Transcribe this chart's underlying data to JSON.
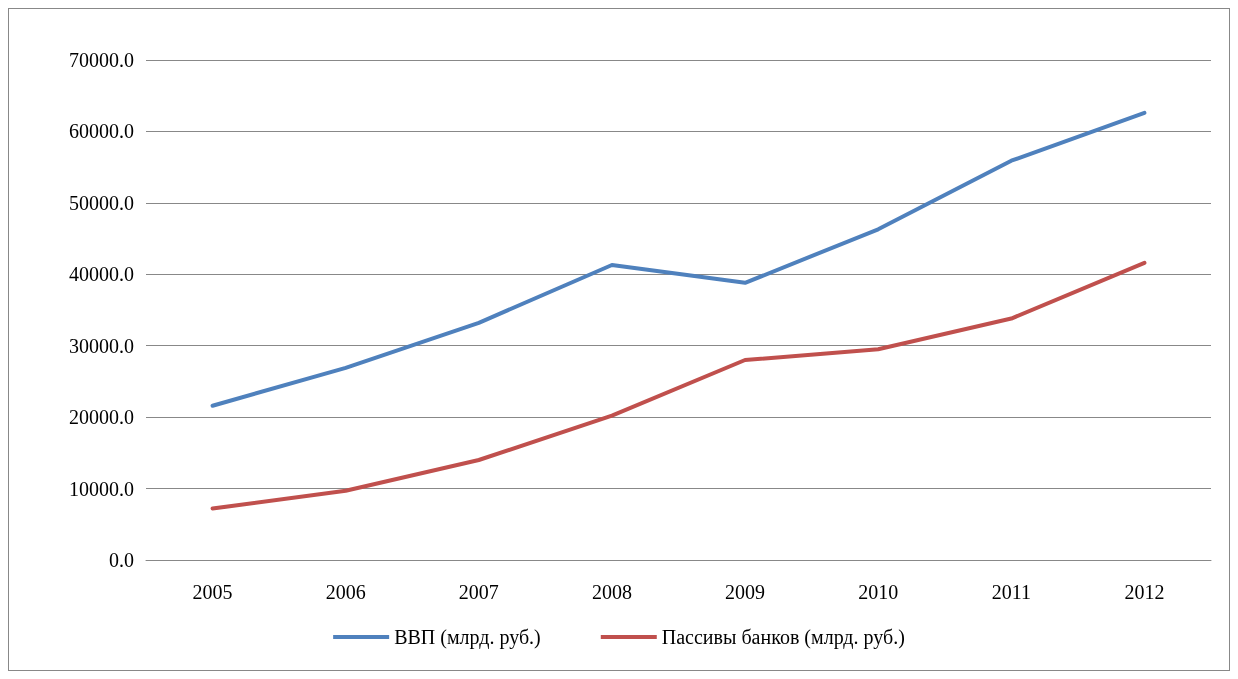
{
  "chart_data": {
    "type": "line",
    "categories": [
      "2005",
      "2006",
      "2007",
      "2008",
      "2009",
      "2010",
      "2011",
      "2012"
    ],
    "series": [
      {
        "name": "ВВП (млрд. руб.)",
        "color": "#4f81bd",
        "values": [
          21600,
          26900,
          33200,
          41300,
          38800,
          46300,
          55900,
          62600
        ]
      },
      {
        "name": "Пассивы банков (млрд. руб.)",
        "color": "#c0504d",
        "values": [
          7200,
          9700,
          14000,
          20200,
          28000,
          29500,
          33800,
          41600
        ]
      }
    ],
    "ylim": [
      0,
      70000
    ],
    "yticks": [
      {
        "value": 0,
        "label": "0.0"
      },
      {
        "value": 10000,
        "label": "10000.0"
      },
      {
        "value": 20000,
        "label": "20000.0"
      },
      {
        "value": 30000,
        "label": "30000.0"
      },
      {
        "value": 40000,
        "label": "40000.0"
      },
      {
        "value": 50000,
        "label": "50000.0"
      },
      {
        "value": 60000,
        "label": "60000.0"
      },
      {
        "value": 70000,
        "label": "70000.0"
      }
    ],
    "grid": "y",
    "legend": "bottom",
    "marker": "none",
    "line_style": "solid"
  }
}
